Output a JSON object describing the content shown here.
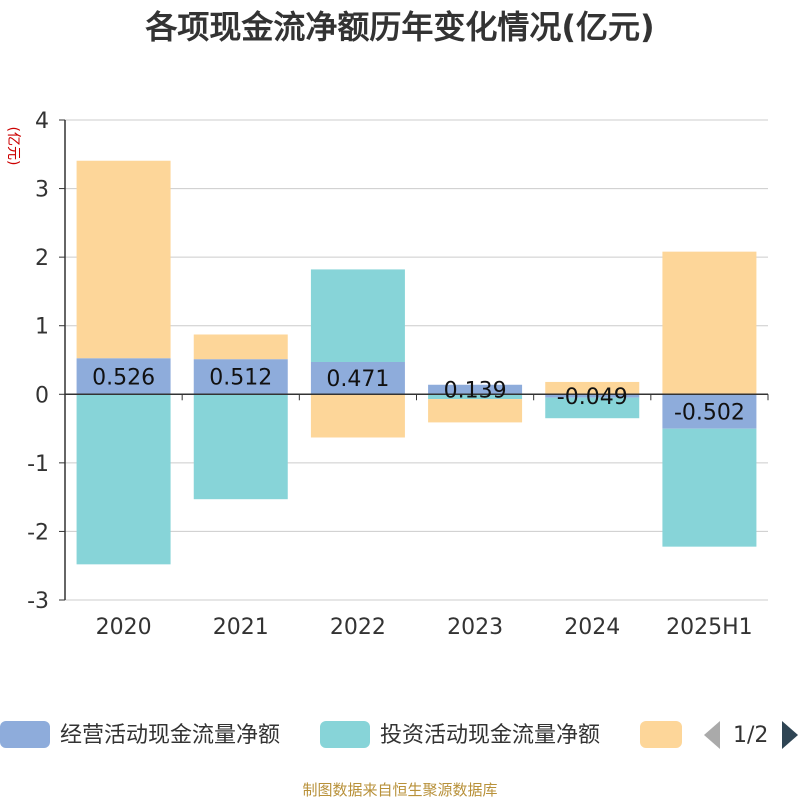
{
  "chart_data": {
    "type": "bar",
    "stacked": true,
    "title": "各项现金流净额历年变化情况(亿元)",
    "ylabel": "(亿元)",
    "categories": [
      "2020",
      "2021",
      "2022",
      "2023",
      "2024",
      "2025H1"
    ],
    "ylim": [
      -3,
      4
    ],
    "yticks": [
      -3,
      -2,
      -1,
      0,
      1,
      2,
      3,
      4
    ],
    "grid": true,
    "legend_position": "bottom",
    "series": [
      {
        "name": "经营活动现金流量净额",
        "color": "#8eacdb",
        "values": [
          0.526,
          0.512,
          0.471,
          0.139,
          -0.049,
          -0.502
        ],
        "labels": [
          "0.526",
          "0.512",
          "0.471",
          "0.139",
          "-0.049",
          "-0.502"
        ]
      },
      {
        "name": "投资活动现金流量净额",
        "color": "#87d4d8",
        "values": [
          -2.48,
          -1.53,
          1.35,
          -0.07,
          -0.3,
          -1.72
        ]
      },
      {
        "name": "",
        "color": "#fdd699",
        "values": [
          2.88,
          0.36,
          -0.63,
          -0.34,
          0.18,
          2.08
        ]
      }
    ]
  },
  "legend": {
    "page": "1/2"
  },
  "source": "制图数据来自恒生聚源数据库"
}
